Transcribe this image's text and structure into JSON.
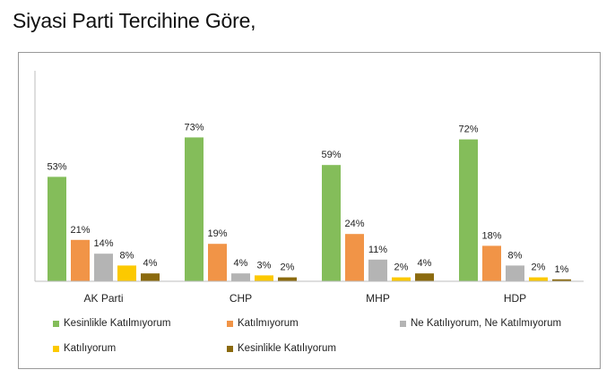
{
  "title": "Siyasi Parti Tercihine Göre,",
  "chart_data": {
    "type": "bar",
    "categories": [
      "AK Parti",
      "CHP",
      "MHP",
      "HDP"
    ],
    "ylim": [
      0,
      80
    ],
    "series": [
      {
        "name": "Kesinlikle Katılmıyorum",
        "color": "#84BD5A",
        "values": [
          53,
          73,
          59,
          72
        ],
        "labels": [
          "53%",
          "73%",
          "59%",
          "72%"
        ]
      },
      {
        "name": "Katılmıyorum",
        "color": "#F19447",
        "values": [
          21,
          19,
          24,
          18
        ],
        "labels": [
          "21%",
          "19%",
          "24%",
          "18%"
        ]
      },
      {
        "name": "Ne Katılıyorum, Ne Katılmıyorum",
        "color": "#B4B4B4",
        "values": [
          14,
          4,
          11,
          8
        ],
        "labels": [
          "14%",
          "4%",
          "11%",
          "8%"
        ]
      },
      {
        "name": "Katılıyorum",
        "color": "#FCC900",
        "values": [
          8,
          3,
          2,
          2
        ],
        "labels": [
          "8%",
          "3%",
          "2%",
          "2%"
        ]
      },
      {
        "name": "Kesinlikle Katılıyorum",
        "color": "#8B6A0E",
        "values": [
          4,
          2,
          4,
          1
        ],
        "labels": [
          "4%",
          "2%",
          "4%",
          "1%"
        ]
      }
    ],
    "grid": false,
    "legend": "bottom"
  }
}
